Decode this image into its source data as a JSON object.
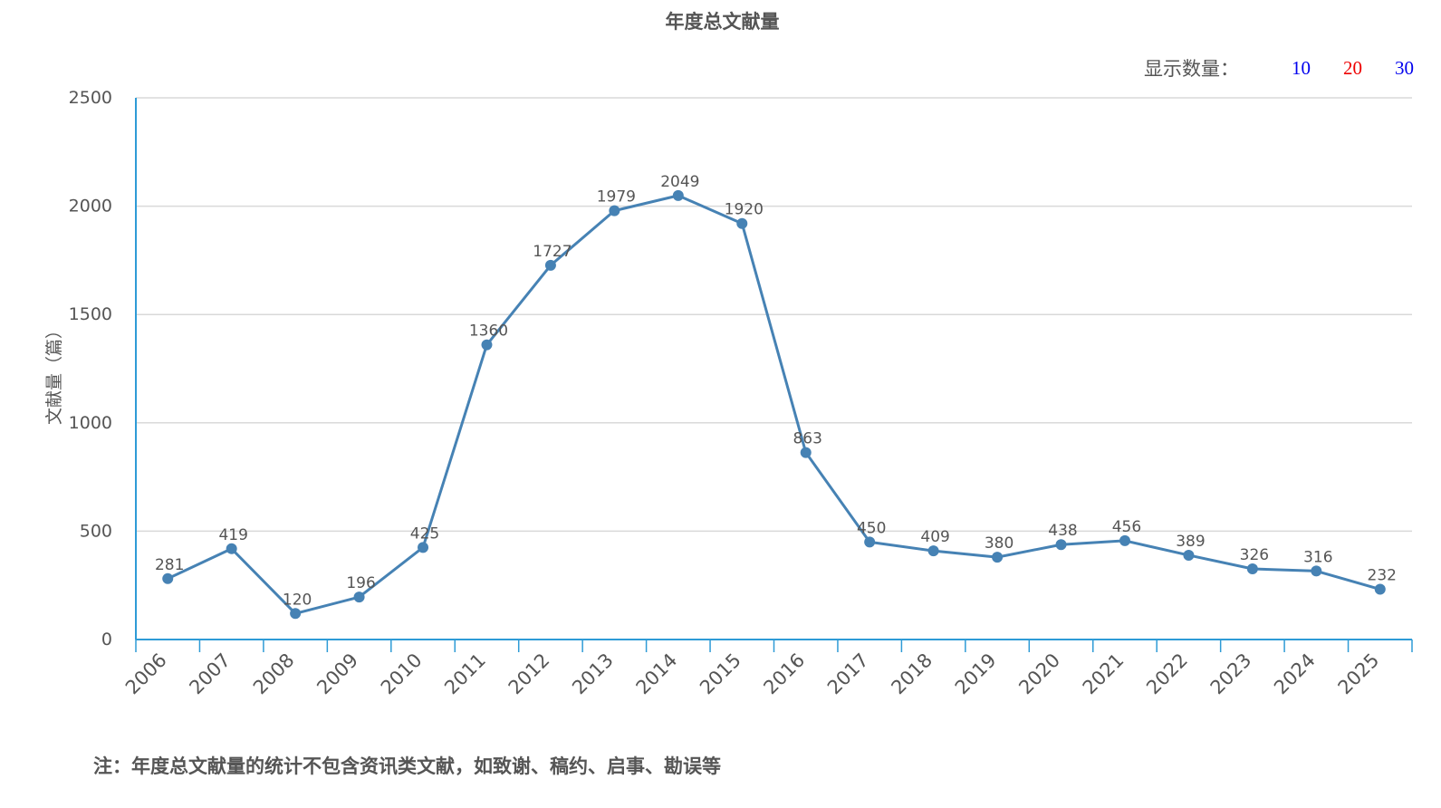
{
  "title": "年度总文献量",
  "count_selector": {
    "label": "显示数量：",
    "options": [
      {
        "label": "10",
        "color": "#0000ee"
      },
      {
        "label": "20",
        "color": "#ee0000"
      },
      {
        "label": "30",
        "color": "#0000ee"
      }
    ]
  },
  "footnote": "注：年度总文献量的统计不包含资讯类文献，如致谢、稿约、启事、勘误等",
  "chart_data": {
    "type": "line",
    "title": "年度总文献量",
    "xlabel": "",
    "ylabel": "文献量（篇）",
    "categories": [
      "2006",
      "2007",
      "2008",
      "2009",
      "2010",
      "2011",
      "2012",
      "2013",
      "2014",
      "2015",
      "2016",
      "2017",
      "2018",
      "2019",
      "2020",
      "2021",
      "2022",
      "2023",
      "2024",
      "2025"
    ],
    "series": [
      {
        "values": [
          281,
          419,
          120,
          196,
          425,
          1360,
          1727,
          1979,
          2049,
          1920,
          863,
          450,
          409,
          380,
          438,
          456,
          389,
          326,
          316,
          232
        ]
      }
    ],
    "ylim": [
      0,
      2500
    ],
    "yticks": [
      0,
      500,
      1000,
      1500,
      2000,
      2500
    ],
    "grid": true,
    "data_labels": true,
    "line_color": "#4682b4",
    "axis_color": "#2e9bd6"
  }
}
